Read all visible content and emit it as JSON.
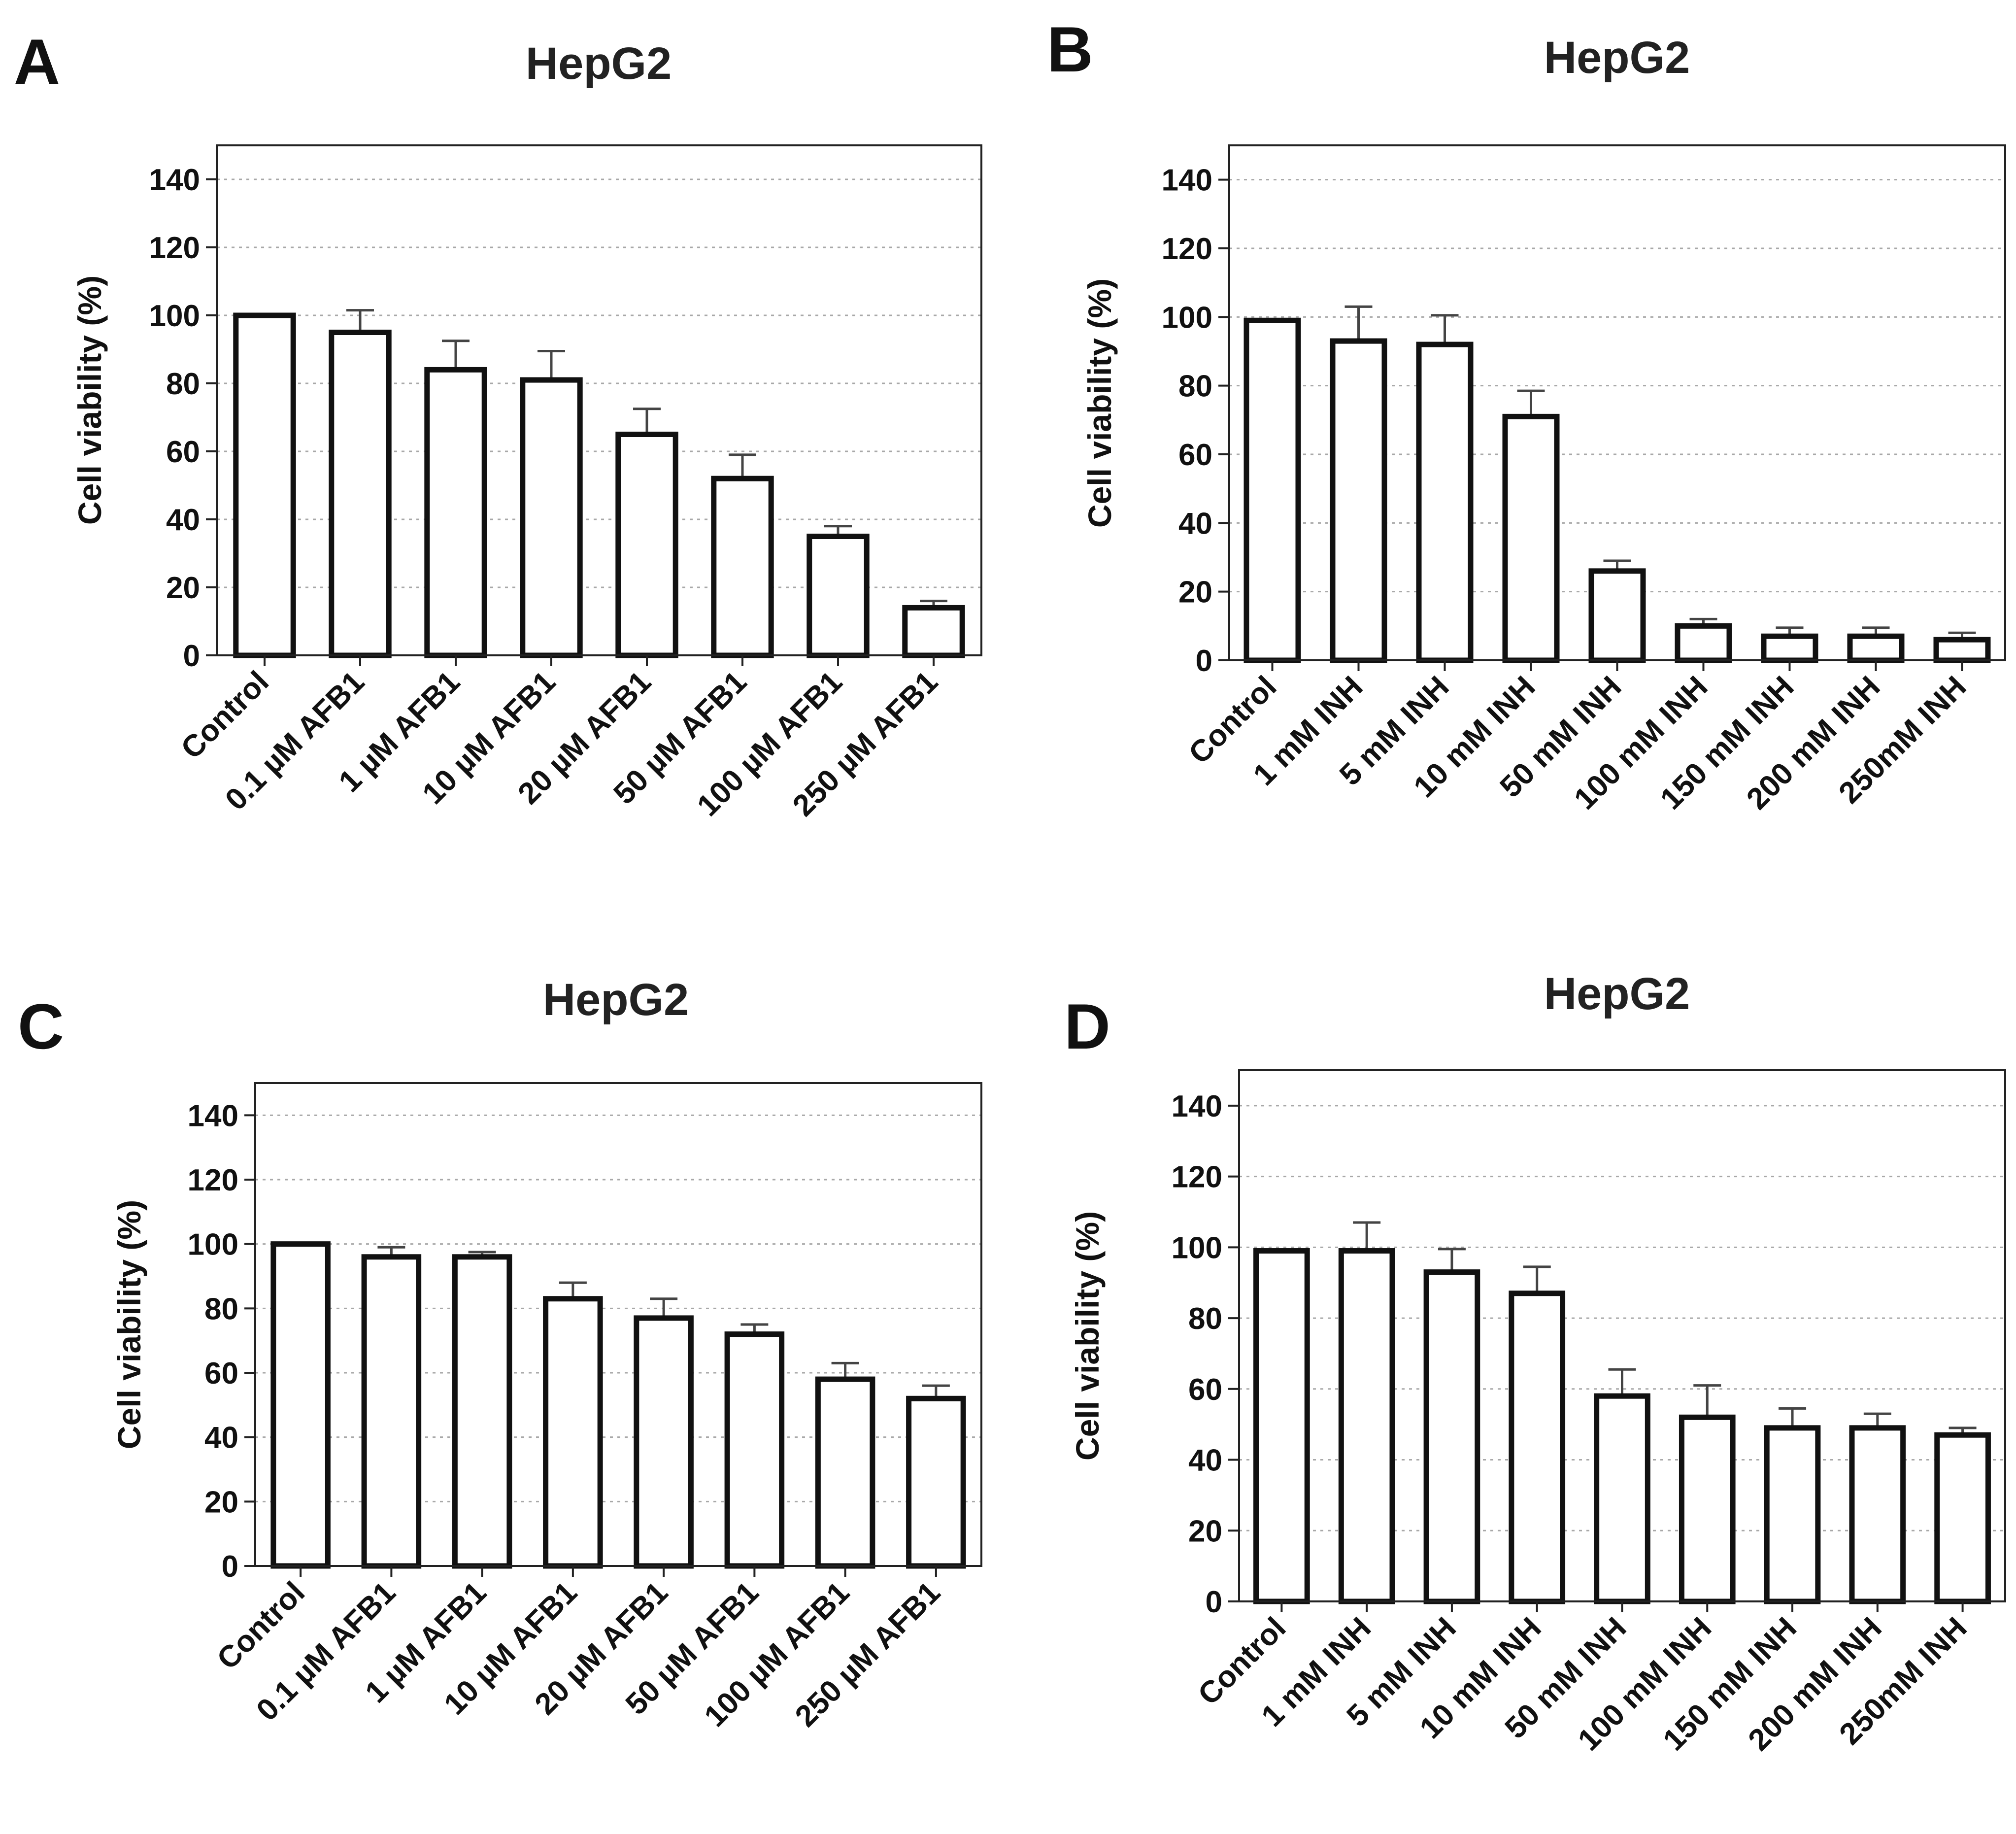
{
  "chart_data": [
    {
      "type": "bar",
      "panel": "A",
      "title": "HepG2",
      "ylabel": "Cell viability (%)",
      "xlabel": "",
      "ylim": [
        0,
        150
      ],
      "yticks": [
        0,
        20,
        40,
        60,
        80,
        100,
        120,
        140
      ],
      "grid": true,
      "categories": [
        "Control",
        "0.1 µM AFB1",
        "1 µM AFB1",
        "10 µM AFB1",
        "20 µM AFB1",
        "50 µM AFB1",
        "100 µM AFB1",
        "250 µM AFB1"
      ],
      "values": [
        100,
        95,
        84,
        81,
        65,
        52,
        35,
        14
      ],
      "errors": [
        0,
        6.5,
        8.5,
        8.5,
        7.5,
        7,
        3,
        2
      ]
    },
    {
      "type": "bar",
      "panel": "B",
      "title": "HepG2",
      "ylabel": "Cell viability (%)",
      "xlabel": "",
      "ylim": [
        0,
        150
      ],
      "yticks": [
        0,
        20,
        40,
        60,
        80,
        100,
        120,
        140
      ],
      "grid": true,
      "categories": [
        "Control",
        "1 mM INH",
        "5 mM INH",
        "10 mM INH",
        "50 mM INH",
        "100 mM INH",
        "150 mM INH",
        "200 mM INH",
        "250mM INH"
      ],
      "values": [
        99,
        93,
        92,
        71,
        26,
        10,
        7,
        7,
        6
      ],
      "errors": [
        0,
        10,
        8.5,
        7.5,
        3,
        2,
        2.5,
        2.5,
        2
      ]
    },
    {
      "type": "bar",
      "panel": "C",
      "title": "HepG2",
      "ylabel": "Cell viability (%)",
      "xlabel": "",
      "ylim": [
        0,
        150
      ],
      "yticks": [
        0,
        20,
        40,
        60,
        80,
        100,
        120,
        140
      ],
      "grid": true,
      "categories": [
        "Control",
        "0.1 µM AFB1",
        "1 µM AFB1",
        "10 µM AFB1",
        "20 µM AFB1",
        "50 µM AFB1",
        "100 µM AFB1",
        "250 µM AFB1"
      ],
      "values": [
        100,
        96,
        96,
        83,
        77,
        72,
        58,
        52
      ],
      "errors": [
        0,
        3,
        1.5,
        5,
        6,
        3,
        5,
        4
      ]
    },
    {
      "type": "bar",
      "panel": "D",
      "title": "HepG2",
      "ylabel": "Cell viability (%)",
      "xlabel": "",
      "ylim": [
        0,
        150
      ],
      "yticks": [
        0,
        20,
        40,
        60,
        80,
        100,
        120,
        140
      ],
      "grid": true,
      "categories": [
        "Control",
        "1 mM INH",
        "5 mM INH",
        "10 mM INH",
        "50 mM INH",
        "100 mM INH",
        "150 mM INH",
        "200 mM INH",
        "250mM INH"
      ],
      "values": [
        99,
        99,
        93,
        87,
        58,
        52,
        49,
        49,
        47
      ],
      "errors": [
        0,
        8,
        6.5,
        7.5,
        7.5,
        9,
        5.5,
        4,
        2
      ]
    }
  ]
}
